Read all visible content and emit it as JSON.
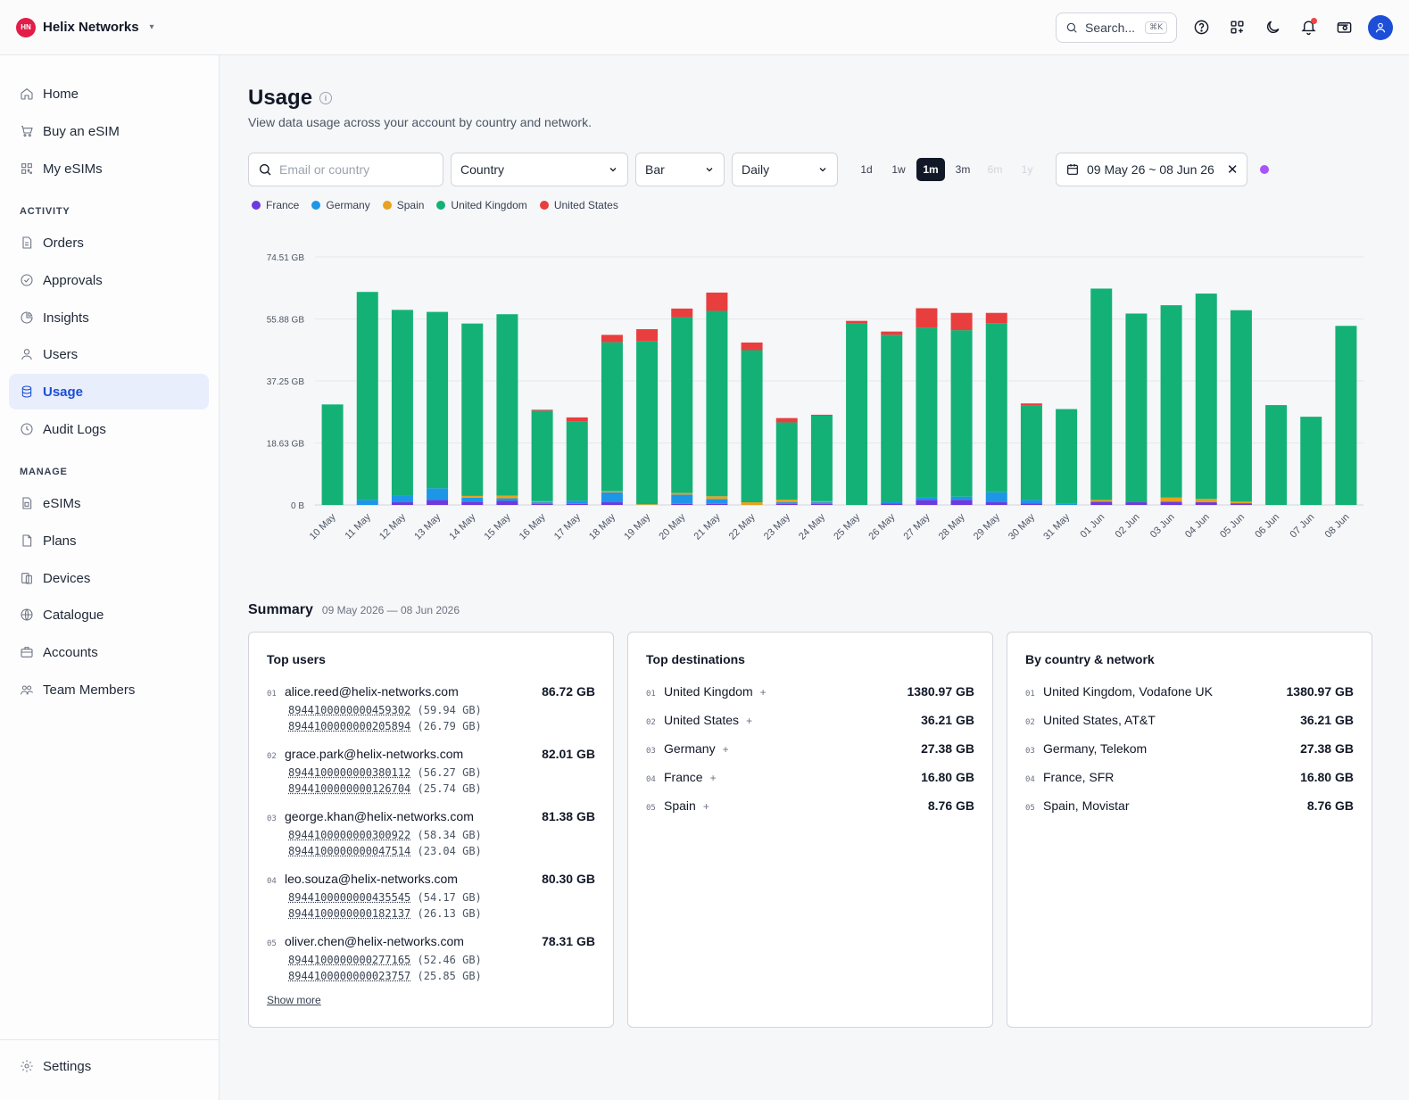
{
  "header": {
    "org_initials": "HN",
    "org_name": "Helix Networks",
    "search_label": "Search...",
    "search_kbd": "⌘K",
    "icons": [
      "help-icon",
      "apps-icon",
      "moon-icon",
      "bell-icon",
      "wallet-icon",
      "user-icon"
    ]
  },
  "sidebar": {
    "top": [
      {
        "label": "Home",
        "icon": "home-icon"
      },
      {
        "label": "Buy an eSIM",
        "icon": "cart-icon"
      },
      {
        "label": "My eSIMs",
        "icon": "qr-icon"
      }
    ],
    "activity_label": "ACTIVITY",
    "activity": [
      {
        "label": "Orders",
        "icon": "document-icon"
      },
      {
        "label": "Approvals",
        "icon": "check-circle-icon"
      },
      {
        "label": "Insights",
        "icon": "pie-icon"
      },
      {
        "label": "Users",
        "icon": "user-icon"
      },
      {
        "label": "Usage",
        "icon": "database-icon",
        "active": true
      },
      {
        "label": "Audit Logs",
        "icon": "clock-icon"
      }
    ],
    "manage_label": "MANAGE",
    "manage": [
      {
        "label": "eSIMs",
        "icon": "sim-icon"
      },
      {
        "label": "Plans",
        "icon": "file-icon"
      },
      {
        "label": "Devices",
        "icon": "device-icon"
      },
      {
        "label": "Catalogue",
        "icon": "globe-icon"
      },
      {
        "label": "Accounts",
        "icon": "briefcase-icon"
      },
      {
        "label": "Team Members",
        "icon": "team-icon"
      }
    ],
    "settings_label": "Settings"
  },
  "page": {
    "title": "Usage",
    "subtitle": "View data usage across your account by country and network."
  },
  "filters": {
    "search_placeholder": "Email or country",
    "group_by": "Country",
    "chart_type": "Bar",
    "interval": "Daily",
    "ranges": [
      "1d",
      "1w",
      "1m",
      "3m",
      "6m",
      "1y"
    ],
    "active_range": "1m",
    "date_range": "09 May 26 ~ 08 Jun 26"
  },
  "colors": {
    "France": "#6d3ae0",
    "Germany": "#1e96e8",
    "Spain": "#e8a21e",
    "United Kingdom": "#14b176",
    "United States": "#e93e3e"
  },
  "chart_data": {
    "type": "bar",
    "stacked": true,
    "ylim": [
      0,
      74.51
    ],
    "y_ticks": [
      "0 B",
      "18.63 GB",
      "37.25 GB",
      "55.88 GB",
      "74.51 GB"
    ],
    "y_tick_values": [
      0,
      18.63,
      37.25,
      55.88,
      74.51
    ],
    "legend_position": "top-left",
    "grid": true,
    "categories": [
      "10 May",
      "11 May",
      "12 May",
      "13 May",
      "14 May",
      "15 May",
      "16 May",
      "17 May",
      "18 May",
      "19 May",
      "20 May",
      "21 May",
      "22 May",
      "23 May",
      "24 May",
      "25 May",
      "26 May",
      "27 May",
      "28 May",
      "29 May",
      "30 May",
      "31 May",
      "01 Jun",
      "02 Jun",
      "03 Jun",
      "04 Jun",
      "05 Jun",
      "06 Jun",
      "07 Jun",
      "08 Jun"
    ],
    "series": [
      {
        "name": "France",
        "values": [
          0,
          0,
          0.8,
          1.5,
          1.0,
          1.2,
          0.3,
          0.3,
          0.8,
          0,
          0.3,
          0.3,
          0,
          0.3,
          0.3,
          0,
          0.5,
          1.5,
          1.5,
          0.8,
          0.5,
          0,
          1.0,
          0.8,
          1.0,
          0.8,
          0.5,
          0,
          0,
          0
        ]
      },
      {
        "name": "Germany",
        "values": [
          0,
          1.5,
          2.0,
          3.5,
          1.2,
          0.8,
          0.5,
          1.0,
          3.0,
          0,
          2.8,
          1.5,
          0,
          0.5,
          0.5,
          0,
          0.3,
          0.8,
          1.0,
          3.0,
          1.0,
          0.5,
          0,
          0,
          0,
          0,
          0,
          0,
          0,
          0
        ]
      },
      {
        "name": "Spain",
        "values": [
          0,
          0,
          0,
          0,
          0.5,
          0.8,
          0.3,
          0,
          0.3,
          0.2,
          0.5,
          0.8,
          0.8,
          0.8,
          0.3,
          0,
          0,
          0,
          0,
          0,
          0,
          0,
          0.5,
          0,
          1.2,
          1.0,
          0.5,
          0,
          0,
          0
        ]
      },
      {
        "name": "United Kingdom",
        "values": [
          30.2,
          62.5,
          55.8,
          53.0,
          51.8,
          54.5,
          27.2,
          23.8,
          44.8,
          48.9,
          52.8,
          55.7,
          45.7,
          23.2,
          25.7,
          54.5,
          50.3,
          51.0,
          50.0,
          50.8,
          28.5,
          28.3,
          63.5,
          56.7,
          57.8,
          61.7,
          57.5,
          30.0,
          26.5,
          53.8
        ]
      },
      {
        "name": "United States",
        "values": [
          0,
          0,
          0,
          0,
          0,
          0,
          0.3,
          1.2,
          2.2,
          3.7,
          2.6,
          5.5,
          2.3,
          1.3,
          0.3,
          0.8,
          1.0,
          5.8,
          5.2,
          3.1,
          0.5,
          0,
          0,
          0,
          0,
          0,
          0,
          0,
          0,
          0
        ]
      }
    ]
  },
  "summary": {
    "title": "Summary",
    "date": "09 May 2026 — 08 Jun 2026",
    "show_more": "Show more",
    "top_users": {
      "title": "Top users",
      "items": [
        {
          "idx": "01",
          "email": "alice.reed@helix-networks.com",
          "total": "86.72 GB",
          "sims": [
            {
              "iccid": "8944100000000459302",
              "usage": "(59.94 GB)"
            },
            {
              "iccid": "8944100000000205894",
              "usage": "(26.79 GB)"
            }
          ]
        },
        {
          "idx": "02",
          "email": "grace.park@helix-networks.com",
          "total": "82.01 GB",
          "sims": [
            {
              "iccid": "8944100000000380112",
              "usage": "(56.27 GB)"
            },
            {
              "iccid": "8944100000000126704",
              "usage": "(25.74 GB)"
            }
          ]
        },
        {
          "idx": "03",
          "email": "george.khan@helix-networks.com",
          "total": "81.38 GB",
          "sims": [
            {
              "iccid": "8944100000000300922",
              "usage": "(58.34 GB)"
            },
            {
              "iccid": "8944100000000047514",
              "usage": "(23.04 GB)"
            }
          ]
        },
        {
          "idx": "04",
          "email": "leo.souza@helix-networks.com",
          "total": "80.30 GB",
          "sims": [
            {
              "iccid": "8944100000000435545",
              "usage": "(54.17 GB)"
            },
            {
              "iccid": "8944100000000182137",
              "usage": "(26.13 GB)"
            }
          ]
        },
        {
          "idx": "05",
          "email": "oliver.chen@helix-networks.com",
          "total": "78.31 GB",
          "sims": [
            {
              "iccid": "8944100000000277165",
              "usage": "(52.46 GB)"
            },
            {
              "iccid": "8944100000000023757",
              "usage": "(25.85 GB)"
            }
          ]
        }
      ]
    },
    "top_destinations": {
      "title": "Top destinations",
      "items": [
        {
          "idx": "01",
          "label": "United Kingdom",
          "value": "1380.97 GB"
        },
        {
          "idx": "02",
          "label": "United States",
          "value": "36.21 GB"
        },
        {
          "idx": "03",
          "label": "Germany",
          "value": "27.38 GB"
        },
        {
          "idx": "04",
          "label": "France",
          "value": "16.80 GB"
        },
        {
          "idx": "05",
          "label": "Spain",
          "value": "8.76 GB"
        }
      ]
    },
    "by_country_network": {
      "title": "By country & network",
      "items": [
        {
          "idx": "01",
          "label": "United Kingdom, Vodafone UK",
          "value": "1380.97 GB"
        },
        {
          "idx": "02",
          "label": "United States, AT&T",
          "value": "36.21 GB"
        },
        {
          "idx": "03",
          "label": "Germany, Telekom",
          "value": "27.38 GB"
        },
        {
          "idx": "04",
          "label": "France, SFR",
          "value": "16.80 GB"
        },
        {
          "idx": "05",
          "label": "Spain, Movistar",
          "value": "8.76 GB"
        }
      ]
    }
  }
}
